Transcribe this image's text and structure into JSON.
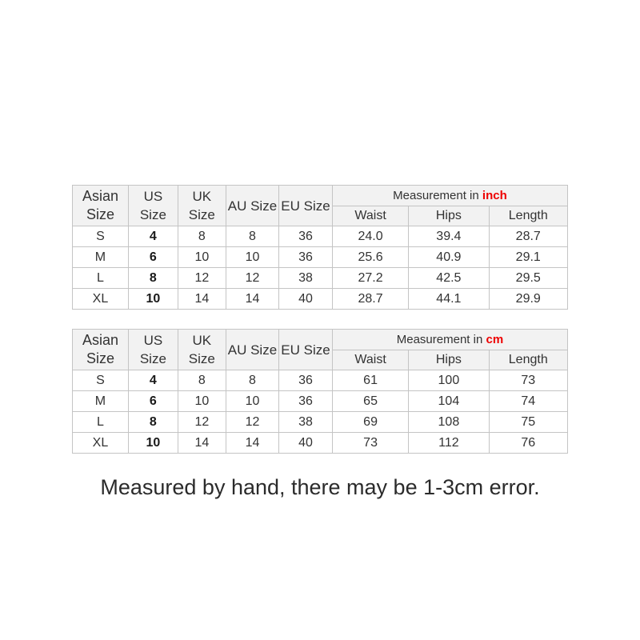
{
  "note": "Measured by hand, there may be 1-3cm error.",
  "colors": {
    "unit_accent_red": "#ee0000",
    "header_background": "#f2f2f2",
    "cell_border": "#c4c4c4"
  },
  "size_tables": [
    {
      "measurement_label": "Measurement in",
      "unit": "inch",
      "columns": [
        "Asian Size",
        "US Size",
        "UK Size",
        "AU Size",
        "EU Size"
      ],
      "sub_columns": [
        "Waist",
        "Hips",
        "Length"
      ],
      "rows": [
        [
          "S",
          "4",
          "8",
          "8",
          "36",
          "24.0",
          "39.4",
          "28.7"
        ],
        [
          "M",
          "6",
          "10",
          "10",
          "36",
          "25.6",
          "40.9",
          "29.1"
        ],
        [
          "L",
          "8",
          "12",
          "12",
          "38",
          "27.2",
          "42.5",
          "29.5"
        ],
        [
          "XL",
          "10",
          "14",
          "14",
          "40",
          "28.7",
          "44.1",
          "29.9"
        ]
      ]
    },
    {
      "measurement_label": "Measurement in",
      "unit": "cm",
      "columns": [
        "Asian Size",
        "US Size",
        "UK Size",
        "AU Size",
        "EU Size"
      ],
      "sub_columns": [
        "Waist",
        "Hips",
        "Length"
      ],
      "rows": [
        [
          "S",
          "4",
          "8",
          "8",
          "36",
          "61",
          "100",
          "73"
        ],
        [
          "M",
          "6",
          "10",
          "10",
          "36",
          "65",
          "104",
          "74"
        ],
        [
          "L",
          "8",
          "12",
          "12",
          "38",
          "69",
          "108",
          "75"
        ],
        [
          "XL",
          "10",
          "14",
          "14",
          "40",
          "73",
          "112",
          "76"
        ]
      ]
    }
  ]
}
